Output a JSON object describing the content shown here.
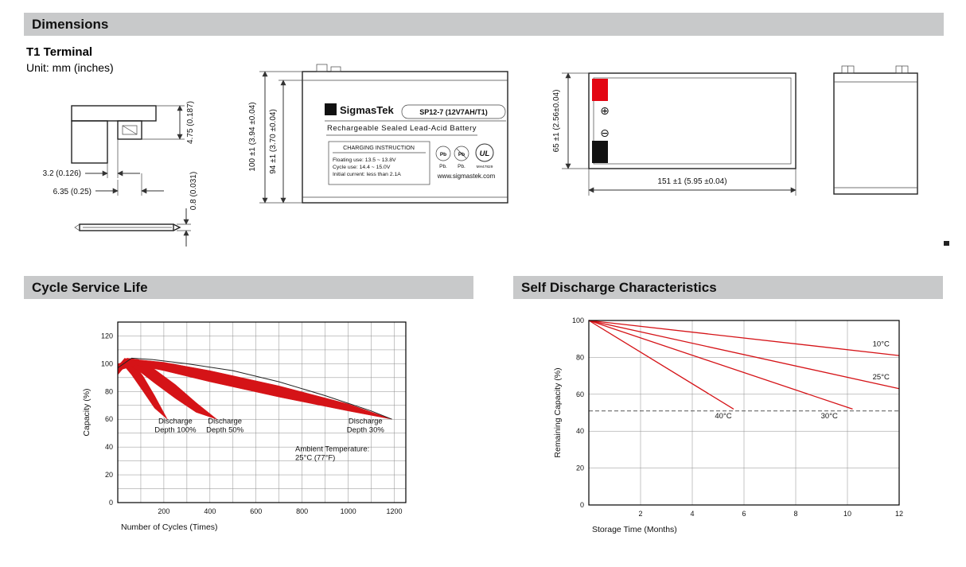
{
  "page": {
    "sections": {
      "dimensions": "Dimensions",
      "cycle_service_life": "Cycle Service Life",
      "self_discharge": "Self Discharge Characteristics"
    },
    "terminal_heading": "T1 Terminal",
    "unit_note": "Unit: mm (inches)"
  },
  "terminal_drawing": {
    "dim_tab_height": "4.75 (0.187)",
    "dim_offset": "3.2 (0.126)",
    "dim_tab_width": "6.35 (0.25)",
    "dim_thickness": "0.8 (0.031)"
  },
  "front_view": {
    "dim_total_height": "100 ±1 (3.94 ±0.04)",
    "dim_case_height": "94 ±1 (3.70 ±0.04)",
    "logo_glyph": "Σ",
    "brand": "SigmasTek",
    "model": "SP12-7 (12V7AH/T1)",
    "subtitle": "Rechargeable Sealed Lead-Acid Battery",
    "charging": {
      "title": "CHARGING INSTRUCTION",
      "line1": "Floating use: 13.5 ~ 13.8V",
      "line2": "Cycle use: 14.4 ~ 15.0V",
      "line3": "Initial current: less than 2.1A"
    },
    "pb_text": "Pb",
    "pb_label1": "Pb.",
    "pb_label2": "Pb.",
    "ul_text": "UL",
    "ul_number": "MH47829",
    "website": "www.sigmastek.com"
  },
  "top_view": {
    "dim_width": "65 ±1 (2.56±0.04)",
    "dim_length": "151 ±1 (5.95 ±0.04)",
    "positive_symbol": "⊕",
    "negative_symbol": "⊖"
  },
  "colors": {
    "accent_red": "#d51317",
    "terminal_red": "#e30613",
    "header_gray": "#c8c9ca"
  },
  "chart_data": [
    {
      "id": "cycle-service-life",
      "type": "area",
      "title": "Cycle Service Life",
      "xlabel": "Number of Cycles (Times)",
      "ylabel": "Capacity (%)",
      "xlim": [
        0,
        1250
      ],
      "ylim": [
        0,
        130
      ],
      "xticks": [
        200,
        400,
        600,
        800,
        1000,
        1200
      ],
      "yticks": [
        0,
        20,
        40,
        60,
        80,
        100,
        120
      ],
      "grid": {
        "xstep": 100,
        "ystep": 10,
        "on": true
      },
      "legend": "none",
      "series": [
        {
          "name": "Discharge Depth 100%",
          "type": "ribbon",
          "color": "#d51317",
          "points": [
            [
              0,
              98
            ],
            [
              30,
              104
            ],
            [
              60,
              102
            ],
            [
              110,
              91
            ],
            [
              160,
              77
            ],
            [
              215,
              60
            ],
            [
              160,
              68
            ],
            [
              110,
              80
            ],
            [
              60,
              92
            ],
            [
              30,
              98
            ],
            [
              0,
              92
            ]
          ]
        },
        {
          "name": "Discharge Depth 50%",
          "type": "ribbon",
          "color": "#d51317",
          "points": [
            [
              0,
              99
            ],
            [
              40,
              104
            ],
            [
              90,
              103
            ],
            [
              160,
              96
            ],
            [
              250,
              85
            ],
            [
              340,
              72
            ],
            [
              430,
              60
            ],
            [
              340,
              65
            ],
            [
              250,
              75
            ],
            [
              160,
              86
            ],
            [
              90,
              95
            ],
            [
              40,
              99
            ],
            [
              0,
              93
            ]
          ]
        },
        {
          "name": "Discharge Depth 30%",
          "type": "ribbon",
          "color": "#d51317",
          "points": [
            [
              0,
              100
            ],
            [
              80,
              103
            ],
            [
              200,
              101
            ],
            [
              400,
              95
            ],
            [
              700,
              84
            ],
            [
              1000,
              71
            ],
            [
              1190,
              60
            ],
            [
              1000,
              66
            ],
            [
              700,
              76
            ],
            [
              400,
              87
            ],
            [
              200,
              95
            ],
            [
              80,
              99
            ],
            [
              0,
              95
            ]
          ]
        },
        {
          "name": "envelope",
          "type": "line",
          "color": "#222222",
          "width": 1,
          "points": [
            [
              0,
              97
            ],
            [
              60,
              104
            ],
            [
              150,
              103
            ],
            [
              300,
              100
            ],
            [
              500,
              95
            ],
            [
              700,
              87
            ],
            [
              900,
              77
            ],
            [
              1100,
              66
            ],
            [
              1190,
              60
            ]
          ]
        }
      ],
      "annotations": [
        {
          "lines": [
            "Discharge",
            "Depth 100%"
          ],
          "x": 250,
          "y": 57,
          "anchor": "middle"
        },
        {
          "lines": [
            "Discharge",
            "Depth 50%"
          ],
          "x": 465,
          "y": 57,
          "anchor": "middle"
        },
        {
          "lines": [
            "Discharge",
            "Depth 30%"
          ],
          "x": 1075,
          "y": 57,
          "anchor": "middle"
        },
        {
          "lines": [
            "Ambient Temperature:",
            "25°C (77°F)"
          ],
          "x": 770,
          "y": 37,
          "anchor": "start"
        }
      ]
    },
    {
      "id": "self-discharge",
      "type": "line",
      "title": "Self Discharge Characteristics",
      "xlabel": "Storage Time (Months)",
      "ylabel": "Remaining Capacity (%)",
      "xlim": [
        0,
        12
      ],
      "ylim": [
        0,
        100
      ],
      "xticks": [
        2,
        4,
        6,
        8,
        10,
        12
      ],
      "yticks": [
        0,
        20,
        40,
        60,
        80,
        100
      ],
      "grid": {
        "xstep": 2,
        "ystep": 20,
        "on": true
      },
      "legend": "inline-labels",
      "series": [
        {
          "name": "10°C",
          "type": "line",
          "color": "#d51317",
          "width": 1.3,
          "points": [
            [
              0,
              100
            ],
            [
              12,
              81
            ]
          ]
        },
        {
          "name": "25°C",
          "type": "line",
          "color": "#d51317",
          "width": 1.3,
          "points": [
            [
              0,
              100
            ],
            [
              12,
              63
            ]
          ]
        },
        {
          "name": "30°C",
          "type": "line",
          "color": "#d51317",
          "width": 1.3,
          "points": [
            [
              0,
              100
            ],
            [
              10.2,
              52
            ]
          ]
        },
        {
          "name": "40°C",
          "type": "line",
          "color": "#d51317",
          "width": 1.3,
          "points": [
            [
              0,
              100
            ],
            [
              5.6,
              52
            ]
          ]
        },
        {
          "name": "threshold",
          "type": "dashed",
          "color": "#555555",
          "width": 1,
          "points": [
            [
              0,
              51
            ],
            [
              12,
              51
            ]
          ]
        }
      ],
      "annotations": [
        {
          "lines": [
            "10°C"
          ],
          "x": 11.3,
          "y": 86,
          "anchor": "middle"
        },
        {
          "lines": [
            "25°C"
          ],
          "x": 11.3,
          "y": 68,
          "anchor": "middle"
        },
        {
          "lines": [
            "40°C"
          ],
          "x": 5.2,
          "y": 47,
          "anchor": "middle"
        },
        {
          "lines": [
            "30°C"
          ],
          "x": 9.3,
          "y": 47,
          "anchor": "middle"
        }
      ]
    }
  ]
}
